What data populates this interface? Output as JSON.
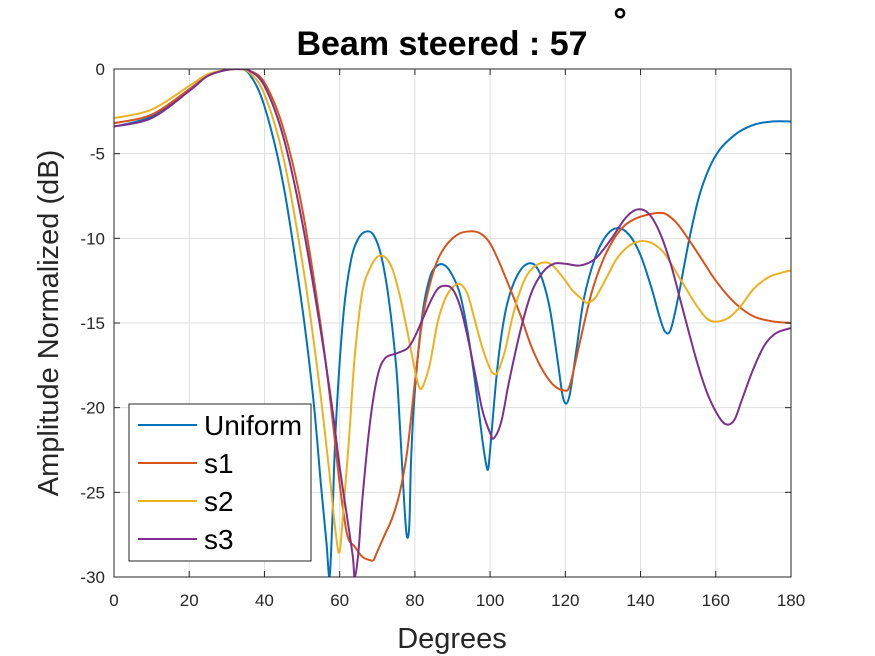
{
  "chart_data": {
    "type": "line",
    "title": "Beam steered : 57",
    "title_degree_symbol": "°",
    "xlabel": "Degrees",
    "ylabel": "Amplitude Normalized (dB)",
    "xlim": [
      0,
      180
    ],
    "ylim": [
      -30,
      0
    ],
    "xticks": [
      0,
      20,
      40,
      60,
      80,
      100,
      120,
      140,
      160,
      180
    ],
    "yticks": [
      0,
      -5,
      -10,
      -15,
      -20,
      -25,
      -30
    ],
    "grid": true,
    "legend_position": "bottom-left",
    "series": [
      {
        "name": "Uniform",
        "color": "#0072BD",
        "x": [
          0,
          10,
          20,
          25,
          30,
          33,
          36,
          40,
          45,
          50,
          53,
          55,
          56.5,
          57.3,
          58,
          59,
          61,
          63,
          65,
          67,
          69,
          71,
          73,
          75,
          76,
          77,
          77.8,
          78.5,
          79,
          80,
          82,
          84,
          86,
          88,
          90,
          92,
          94,
          96,
          98,
          99,
          99.5,
          100,
          102,
          104,
          106,
          108,
          110,
          112,
          114,
          116,
          118,
          119.5,
          121,
          123,
          125,
          128,
          131,
          134,
          137,
          140,
          143,
          145,
          146.5,
          148,
          150,
          153,
          156,
          160,
          165,
          170,
          175,
          180
        ],
        "y": [
          -3.4,
          -2.8,
          -1.2,
          -0.4,
          -0.05,
          0,
          -0.3,
          -2.2,
          -6.8,
          -14,
          -19.5,
          -24.5,
          -28,
          -30,
          -27,
          -21,
          -14.5,
          -11.3,
          -10,
          -9.6,
          -9.8,
          -11,
          -13.5,
          -17.5,
          -21,
          -25,
          -27.5,
          -27,
          -23,
          -19,
          -14.5,
          -12.3,
          -11.6,
          -11.6,
          -12.2,
          -13.3,
          -15.5,
          -18.5,
          -22,
          -23.4,
          -23.6,
          -22.5,
          -17.5,
          -14.4,
          -12.8,
          -11.9,
          -11.5,
          -11.6,
          -12.5,
          -14.3,
          -17.3,
          -19.5,
          -19.4,
          -16.5,
          -13.5,
          -11.1,
          -9.8,
          -9.4,
          -9.8,
          -11,
          -13,
          -14.6,
          -15.5,
          -15.4,
          -13.5,
          -10,
          -7.2,
          -5.1,
          -3.9,
          -3.3,
          -3.1,
          -3.1
        ]
      },
      {
        "name": "s1",
        "color": "#D95319",
        "x": [
          0,
          10,
          20,
          25,
          30,
          33,
          36,
          40,
          45,
          50,
          55,
          58,
          60,
          62,
          64,
          66,
          68,
          69,
          70,
          72,
          74,
          76,
          78,
          80,
          82,
          84,
          86,
          88,
          90,
          92,
          94,
          96,
          98,
          100,
          102,
          105,
          108,
          111,
          114,
          117,
          120,
          121,
          122,
          124,
          127,
          130,
          133,
          136,
          139,
          142,
          145,
          147,
          150,
          155,
          160,
          165,
          170,
          175,
          180
        ],
        "y": [
          -3.2,
          -2.7,
          -1.2,
          -0.4,
          -0.05,
          0,
          -0.1,
          -0.8,
          -3.5,
          -8.2,
          -15.2,
          -20.5,
          -24.5,
          -27.5,
          -28.2,
          -28.8,
          -29,
          -29,
          -28.5,
          -27.5,
          -26.5,
          -25,
          -22.5,
          -18.5,
          -14.8,
          -12.7,
          -11.3,
          -10.5,
          -10,
          -9.7,
          -9.6,
          -9.6,
          -9.8,
          -10.3,
          -11.2,
          -12.8,
          -14.5,
          -16.4,
          -17.8,
          -18.7,
          -19,
          -18.8,
          -18,
          -16,
          -13.2,
          -11.3,
          -10,
          -9.2,
          -8.8,
          -8.6,
          -8.5,
          -8.6,
          -9.2,
          -10.8,
          -12.5,
          -13.8,
          -14.6,
          -14.9,
          -15
        ]
      },
      {
        "name": "s2",
        "color": "#EDB120",
        "x": [
          0,
          10,
          20,
          25,
          30,
          33,
          36,
          40,
          45,
          50,
          54,
          57,
          59,
          60,
          61,
          62.5,
          64,
          66,
          68,
          70,
          72,
          74,
          76,
          78,
          80,
          81,
          82,
          84,
          86,
          88,
          90,
          92,
          94,
          96,
          98,
          100,
          101,
          102,
          104,
          106,
          108,
          110,
          113,
          116,
          119,
          122,
          125,
          126,
          128,
          131,
          134,
          138,
          142,
          146,
          150,
          155,
          158,
          161,
          164,
          167,
          170,
          174,
          178,
          180
        ],
        "y": [
          -2.9,
          -2.4,
          -1,
          -0.3,
          -0.05,
          0,
          -0.2,
          -1.5,
          -5.2,
          -11.3,
          -17.6,
          -23.3,
          -27.5,
          -28.5,
          -26,
          -21.8,
          -17,
          -13.2,
          -11.8,
          -11.1,
          -11.1,
          -11.8,
          -13.4,
          -15.5,
          -17.8,
          -18.7,
          -18.8,
          -17.4,
          -15,
          -13.6,
          -12.9,
          -12.7,
          -13.3,
          -14.9,
          -16.5,
          -17.7,
          -18,
          -17.9,
          -16.6,
          -14.6,
          -13.1,
          -12.1,
          -11.5,
          -11.5,
          -12.2,
          -13.1,
          -13.7,
          -13.8,
          -13.5,
          -12.3,
          -11.1,
          -10.3,
          -10.2,
          -10.8,
          -12.2,
          -14,
          -14.8,
          -14.9,
          -14.6,
          -13.9,
          -13,
          -12.3,
          -12,
          -11.9
        ]
      },
      {
        "name": "s3",
        "color": "#7E2F8E",
        "x": [
          0,
          10,
          20,
          25,
          30,
          33,
          36,
          40,
          45,
          50,
          55,
          58,
          60,
          62,
          63.5,
          64,
          65,
          66,
          68,
          70,
          72,
          75,
          78,
          80,
          82,
          84,
          86,
          88,
          90,
          92,
          94,
          96,
          98,
          100,
          101,
          103,
          105,
          108,
          111,
          114,
          117,
          120,
          124,
          128,
          132,
          136,
          139,
          142,
          145,
          148,
          151,
          155,
          158,
          161,
          163,
          165,
          167,
          170,
          173,
          176,
          180
        ],
        "y": [
          -3.4,
          -2.9,
          -1.3,
          -0.4,
          -0.05,
          0,
          -0.1,
          -1,
          -4,
          -9,
          -15.5,
          -20,
          -23.5,
          -26.5,
          -28.8,
          -30,
          -28.5,
          -25.5,
          -21,
          -18.2,
          -17.1,
          -16.8,
          -16.5,
          -15.8,
          -14.8,
          -13.8,
          -13,
          -12.8,
          -13,
          -14,
          -15.8,
          -18,
          -20.2,
          -21.5,
          -21.8,
          -20.8,
          -18.5,
          -15.5,
          -13.2,
          -12,
          -11.5,
          -11.5,
          -11.6,
          -11.2,
          -10.1,
          -8.8,
          -8.3,
          -8.5,
          -9.6,
          -11.5,
          -14,
          -17.3,
          -19.3,
          -20.6,
          -21,
          -20.7,
          -19.5,
          -17.7,
          -16.3,
          -15.6,
          -15.3
        ]
      }
    ]
  }
}
